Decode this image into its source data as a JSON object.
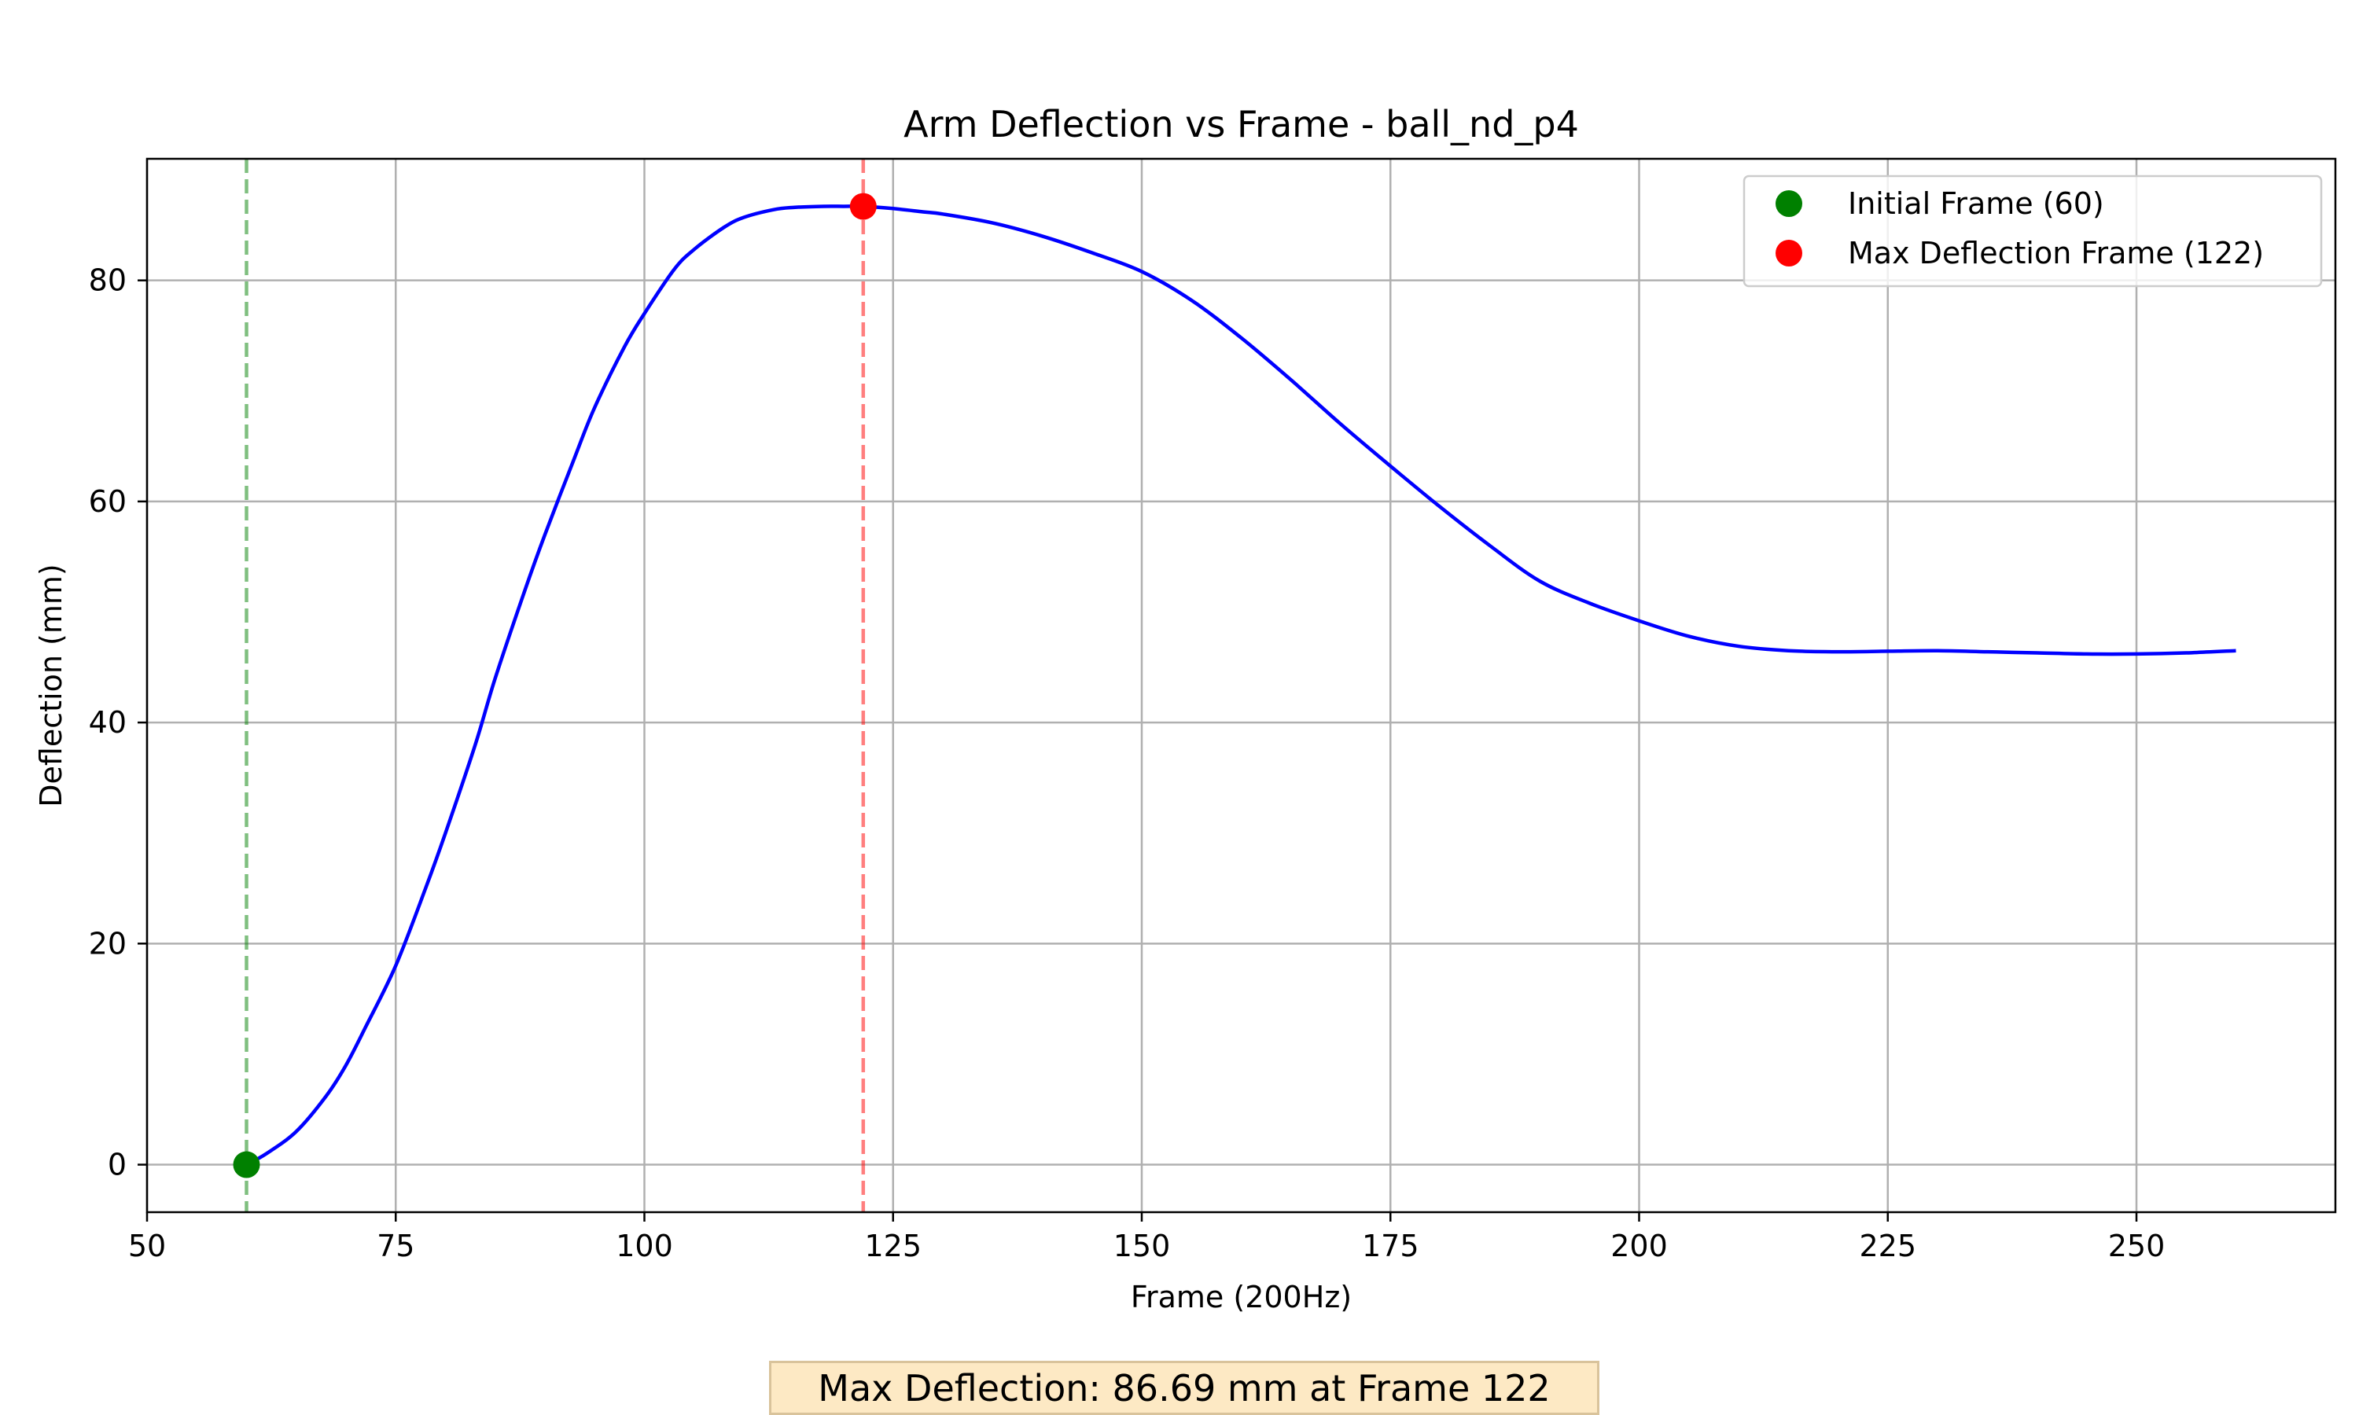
{
  "chart_data": {
    "type": "line",
    "title": "Arm Deflection vs Frame - ball_nd_p4",
    "xlabel": "Frame (200Hz)",
    "ylabel": "Deflection (mm)",
    "xlim": [
      50,
      270
    ],
    "ylim": [
      -4.3,
      91
    ],
    "xticks": [
      50,
      75,
      100,
      125,
      150,
      175,
      200,
      225,
      250
    ],
    "yticks": [
      0,
      20,
      40,
      60,
      80
    ],
    "grid": true,
    "legend_position": "top-right",
    "series": [
      {
        "color": "#0000ff",
        "x": [
          60,
          62,
          65,
          68,
          70,
          72,
          75,
          78,
          80,
          83,
          85,
          88,
          90,
          93,
          95,
          98,
          100,
          103,
          105,
          108,
          110,
          113,
          115,
          118,
          120,
          122,
          125,
          128,
          130,
          135,
          140,
          145,
          150,
          155,
          160,
          165,
          170,
          175,
          180,
          185,
          190,
          195,
          200,
          205,
          210,
          215,
          220,
          225,
          230,
          235,
          240,
          245,
          250,
          255,
          260
        ],
        "y": [
          0,
          1.0,
          3.0,
          6.2,
          9.0,
          12.5,
          18.0,
          25.0,
          30.0,
          38.0,
          44.0,
          52.0,
          57.0,
          64.0,
          68.5,
          74.0,
          77.0,
          81.0,
          82.8,
          84.8,
          85.7,
          86.4,
          86.6,
          86.7,
          86.7,
          86.69,
          86.5,
          86.2,
          86.0,
          85.2,
          84.0,
          82.5,
          80.8,
          78.2,
          74.8,
          71.0,
          67.0,
          63.2,
          59.5,
          56.0,
          52.8,
          50.8,
          49.2,
          47.8,
          46.9,
          46.5,
          46.4,
          46.45,
          46.5,
          46.4,
          46.3,
          46.2,
          46.2,
          46.3,
          46.5
        ]
      }
    ],
    "markers": [
      {
        "label": "Initial Frame (60)",
        "x": 60,
        "y": 0,
        "color": "#008000"
      },
      {
        "label": "Max Deflection Frame (122)",
        "x": 122,
        "y": 86.69,
        "color": "#ff0000"
      }
    ],
    "vlines": [
      {
        "x": 60,
        "color": "#008000"
      },
      {
        "x": 122,
        "color": "#ff0000"
      }
    ],
    "annotation": "Max Deflection: 86.69 mm at Frame 122"
  }
}
